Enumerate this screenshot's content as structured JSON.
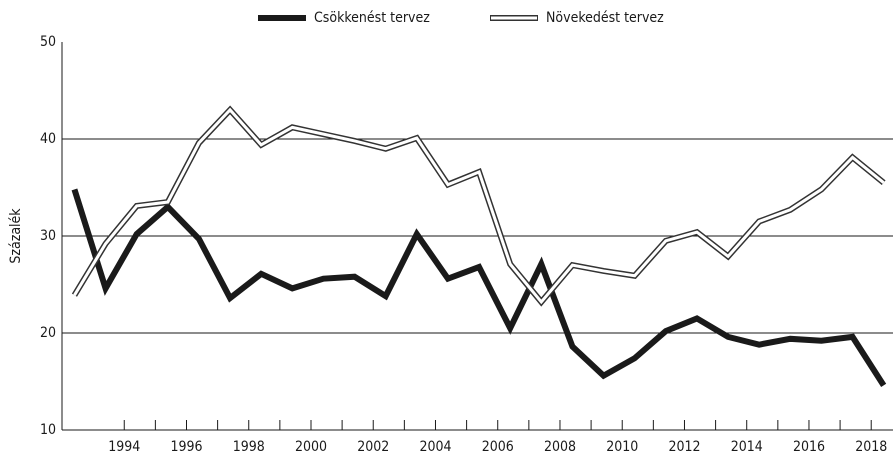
{
  "chart_data": {
    "type": "line",
    "y_label": "Százalék",
    "x": [
      1992.4,
      1993.4,
      1994.4,
      1995.4,
      1996.4,
      1997.4,
      1998.4,
      1999.4,
      2000.4,
      2001.4,
      2002.4,
      2003.4,
      2004.4,
      2005.4,
      2006.4,
      2007.4,
      2008.4,
      2009.4,
      2010.4,
      2011.4,
      2012.4,
      2013.4,
      2014.4,
      2015.4,
      2016.4,
      2017.4,
      2018.4
    ],
    "series": [
      {
        "name": "Csökkenést tervez",
        "color": "#1a1a1a",
        "values": [
          34.8,
          24.6,
          30.2,
          33.0,
          29.7,
          23.6,
          26.1,
          24.6,
          25.6,
          25.8,
          23.8,
          30.2,
          25.6,
          26.8,
          20.5,
          27.1,
          18.6,
          15.6,
          17.4,
          20.2,
          21.5,
          19.6,
          18.8,
          19.4,
          19.2,
          19.6,
          14.6
        ]
      },
      {
        "name": "Növekedést tervez",
        "color": "#ffffff",
        "values": [
          23.9,
          29.2,
          33.1,
          33.5,
          39.6,
          43.0,
          39.4,
          41.2,
          40.5,
          39.8,
          39.0,
          40.1,
          35.3,
          36.6,
          27.1,
          23.2,
          27.0,
          26.4,
          25.9,
          29.5,
          30.4,
          27.9,
          31.5,
          32.7,
          34.8,
          38.1,
          35.5
        ]
      }
    ],
    "xlim": [
      1992,
      2018.7
    ],
    "xticks": [
      1994,
      1996,
      1998,
      2000,
      2002,
      2004,
      2006,
      2008,
      2010,
      2012,
      2014,
      2016,
      2018
    ],
    "ylim": [
      10,
      50
    ],
    "yticks": [
      10,
      20,
      30,
      40,
      50
    ],
    "grid": true,
    "legend": "top"
  }
}
